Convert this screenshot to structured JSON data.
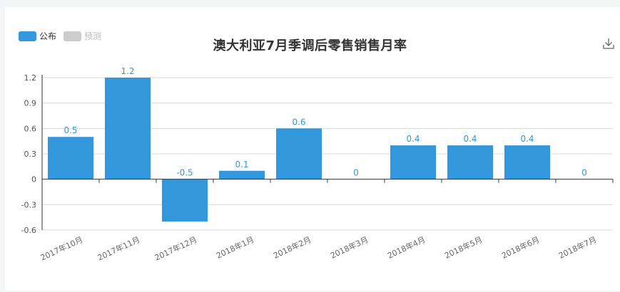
{
  "legend": {
    "published_label": "公布",
    "forecast_label": "预测",
    "published_color": "#3398db",
    "forecast_color": "#cccccc"
  },
  "toolbar": {
    "download_icon": "download-icon"
  },
  "chart_data": {
    "type": "bar",
    "title": "澳大利亚7月季调后零售销售月率",
    "categories": [
      "2017年10月",
      "2017年11月",
      "2017年12月",
      "2018年1月",
      "2018年2月",
      "2018年3月",
      "2018年4月",
      "2018年5月",
      "2018年6月",
      "2018年7月"
    ],
    "series": [
      {
        "name": "公布",
        "values": [
          0.5,
          1.2,
          -0.5,
          0.1,
          0.6,
          0,
          0.4,
          0.4,
          0.4,
          0
        ],
        "color": "#3398db"
      }
    ],
    "value_labels": [
      "0.5",
      "1.2",
      "-0.5",
      "0.1",
      "0.6",
      "0",
      "0.4",
      "0.4",
      "0.4",
      "0"
    ],
    "yticks": [
      "1.2",
      "0.9",
      "0.6",
      "0.3",
      "0",
      "-0.3",
      "-0.6"
    ],
    "ylim": [
      -0.6,
      1.2
    ],
    "grid": true,
    "legend_position": "top-left"
  }
}
